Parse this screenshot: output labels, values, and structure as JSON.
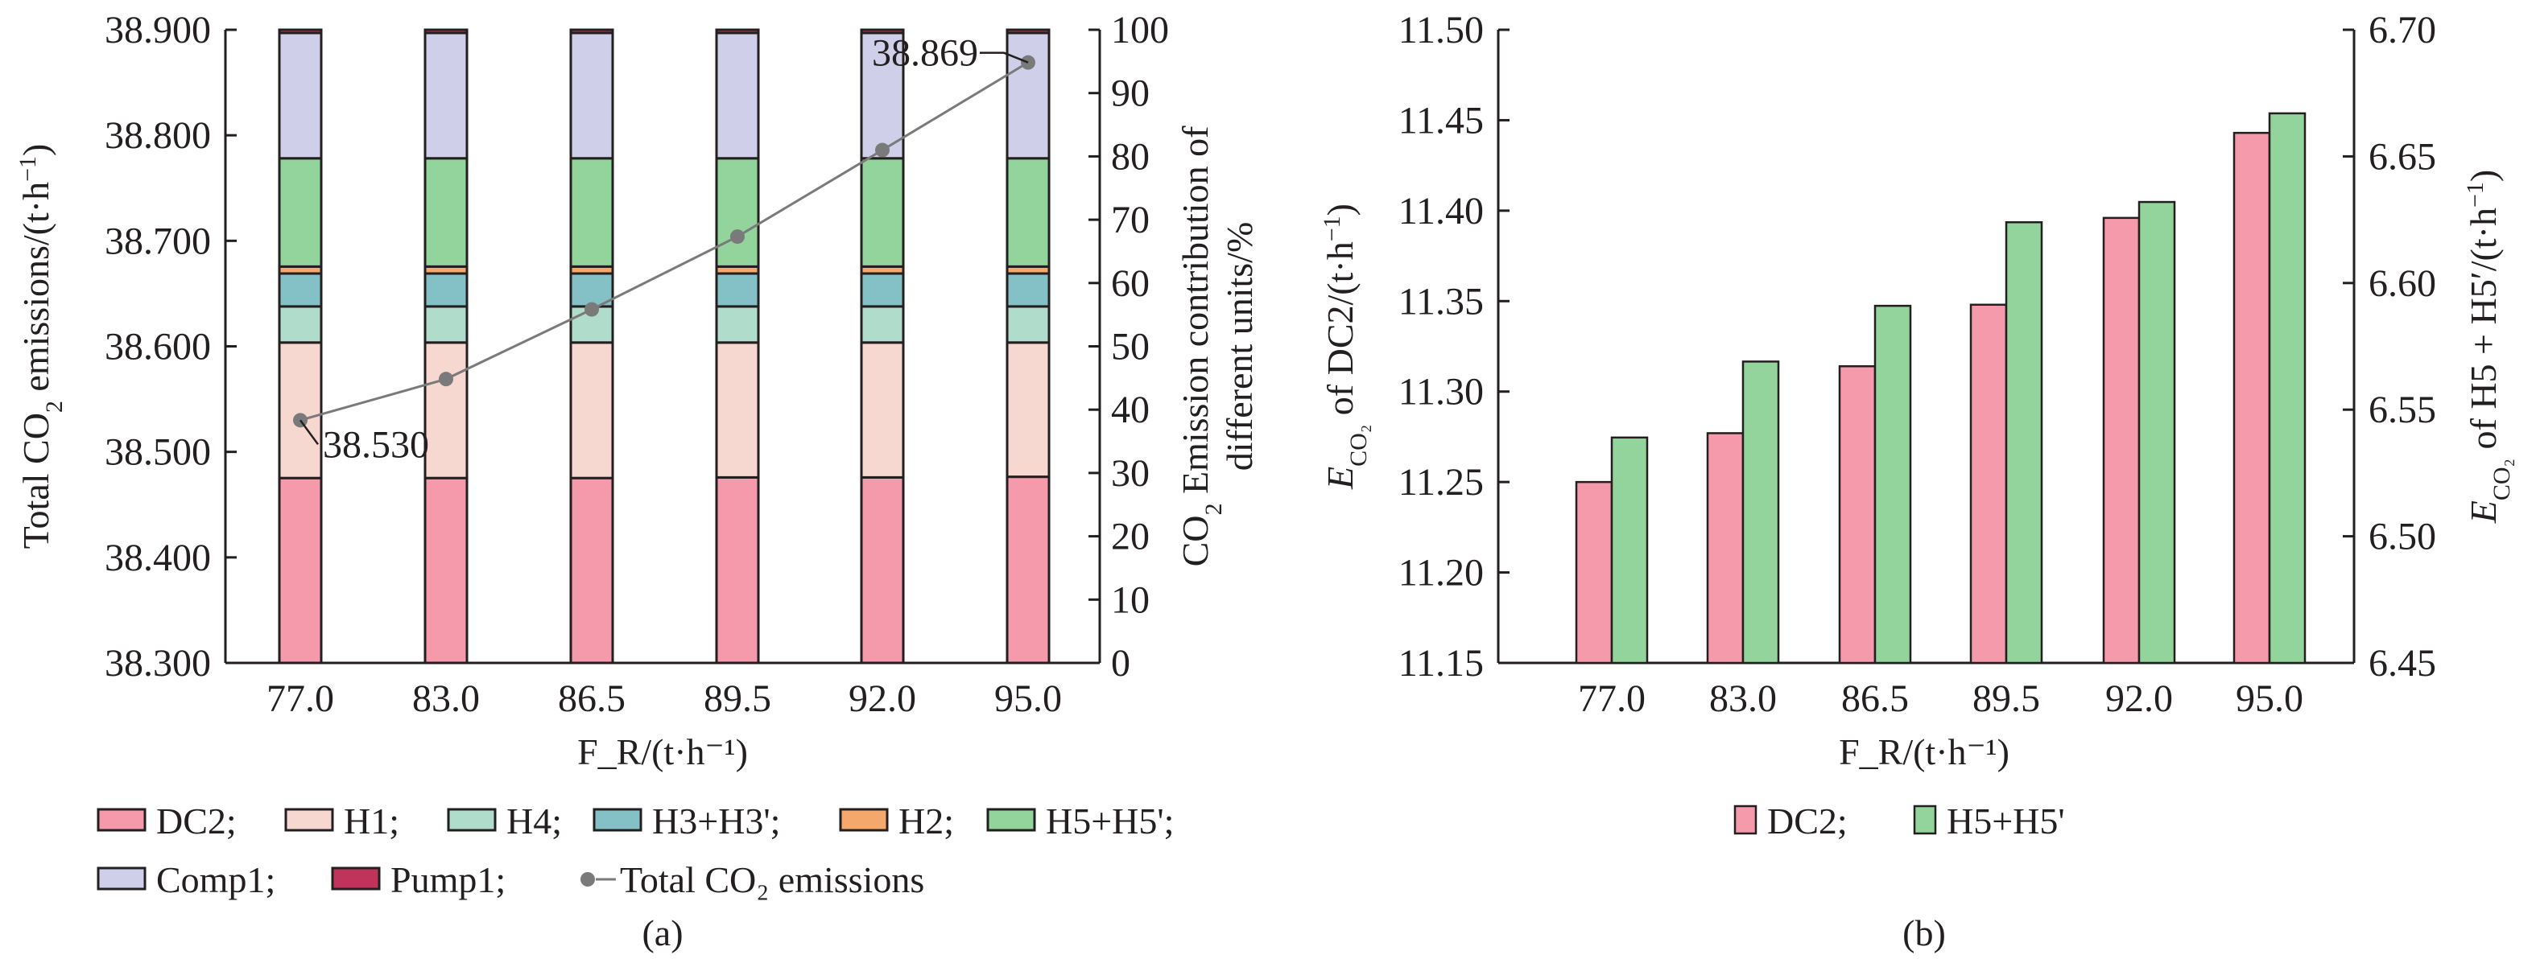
{
  "chart_data": [
    {
      "panel": "(a)",
      "type": "bar",
      "stacked": true,
      "categories": [
        "77.0",
        "83.0",
        "86.5",
        "89.5",
        "92.0",
        "95.0"
      ],
      "xlabel": "F_R/(t·h⁻¹)",
      "ylabel_left": "Total CO₂ emissions/(t·h⁻¹)",
      "ylabel_right": "CO₂ Emission contribution of different units/%",
      "ylim_left": [
        38.3,
        38.9
      ],
      "yticks_left": [
        "38.300",
        "38.400",
        "38.500",
        "38.600",
        "38.700",
        "38.800",
        "38.900"
      ],
      "ylim_right": [
        0,
        100
      ],
      "yticks_right": [
        "0",
        "10",
        "20",
        "30",
        "40",
        "50",
        "60",
        "70",
        "80",
        "90",
        "100"
      ],
      "legend_placement": "bottom",
      "series": [
        {
          "name": "DC2",
          "legend": "DC2;",
          "color": "#f49aab",
          "values": [
            29.2,
            29.2,
            29.2,
            29.3,
            29.3,
            29.4
          ]
        },
        {
          "name": "H1",
          "legend": "H1;",
          "color": "#f7d8d0",
          "values": [
            21.4,
            21.4,
            21.4,
            21.3,
            21.3,
            21.2
          ]
        },
        {
          "name": "H4",
          "legend": "H4;",
          "color": "#afdccb",
          "values": [
            5.7,
            5.7,
            5.7,
            5.7,
            5.7,
            5.7
          ]
        },
        {
          "name": "H3+H3'",
          "legend": "H3+H3';",
          "color": "#84c1c6",
          "values": [
            5.2,
            5.2,
            5.2,
            5.2,
            5.2,
            5.2
          ]
        },
        {
          "name": "H2",
          "legend": "H2;",
          "color": "#f4a86c",
          "values": [
            1.1,
            1.1,
            1.1,
            1.1,
            1.1,
            1.1
          ]
        },
        {
          "name": "H5+H5'",
          "legend": "H5+H5';",
          "color": "#92d49b",
          "values": [
            17.1,
            17.1,
            17.1,
            17.1,
            17.1,
            17.1
          ]
        },
        {
          "name": "Comp1",
          "legend": "Comp1;",
          "color": "#d0cfe9",
          "values": [
            19.8,
            19.8,
            19.8,
            19.8,
            19.8,
            19.8
          ]
        },
        {
          "name": "Pump1",
          "legend": "Pump1;",
          "color": "#c0345a",
          "values": [
            0.5,
            0.5,
            0.5,
            0.5,
            0.5,
            0.5
          ]
        }
      ],
      "line": {
        "name": "Total CO₂ emissions",
        "legend": "Total CO₂ emissions",
        "color": "#7a7a7a",
        "values": [
          38.53,
          38.569,
          38.635,
          38.704,
          38.786,
          38.869
        ]
      },
      "annotations": [
        "38.530",
        "38.869"
      ]
    },
    {
      "panel": "(b)",
      "type": "bar",
      "categories": [
        "77.0",
        "83.0",
        "86.5",
        "89.5",
        "92.0",
        "95.0"
      ],
      "xlabel": "F_R/(t·h⁻¹)",
      "ylabel_left": "E_CO₂ of DC2/(t·h⁻¹)",
      "ylabel_right": "E_CO₂ of H5 + H5′/(t·h⁻¹)",
      "ylim_left": [
        11.15,
        11.5
      ],
      "yticks_left": [
        "11.15",
        "11.20",
        "11.25",
        "11.30",
        "11.35",
        "11.40",
        "11.45",
        "11.50"
      ],
      "ylim_right": [
        6.45,
        6.7
      ],
      "yticks_right": [
        "6.45",
        "6.50",
        "6.55",
        "6.60",
        "6.65",
        "6.70"
      ],
      "legend_placement": "bottom",
      "series": [
        {
          "name": "DC2",
          "legend": "DC2;",
          "axis": "left",
          "color": "#f49aab",
          "values": [
            11.25,
            11.277,
            11.314,
            11.348,
            11.396,
            11.443
          ]
        },
        {
          "name": "H5+H5'",
          "legend": "H5+H5'",
          "axis": "right",
          "color": "#92d49b",
          "values": [
            6.539,
            6.569,
            6.591,
            6.624,
            6.632,
            6.667
          ]
        }
      ]
    }
  ]
}
